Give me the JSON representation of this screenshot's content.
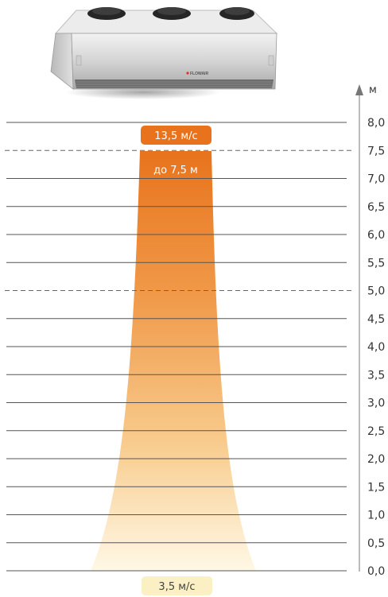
{
  "axis": {
    "unit": "м",
    "ticks": [
      "8,0",
      "7,5",
      "7,0",
      "6,5",
      "6,0",
      "5,5",
      "5,0",
      "4,5",
      "4,0",
      "3,5",
      "3,0",
      "2,5",
      "2,0",
      "1,5",
      "1,0",
      "0,5",
      "0,0"
    ],
    "dashed_at": [
      "7,5",
      "5,0"
    ]
  },
  "top_speed_label": "13,5 м/с",
  "reach_label": "до 7,5 м",
  "bottom_speed_label": "3,5 м/с",
  "brand_text": "FLOWAIR",
  "colors": {
    "jet_top": "#e8731c",
    "jet_bottom": "#fff8e6",
    "top_pill": "#e8731c",
    "bottom_pill": "#fbefc4",
    "grid_line": "#555555"
  }
}
